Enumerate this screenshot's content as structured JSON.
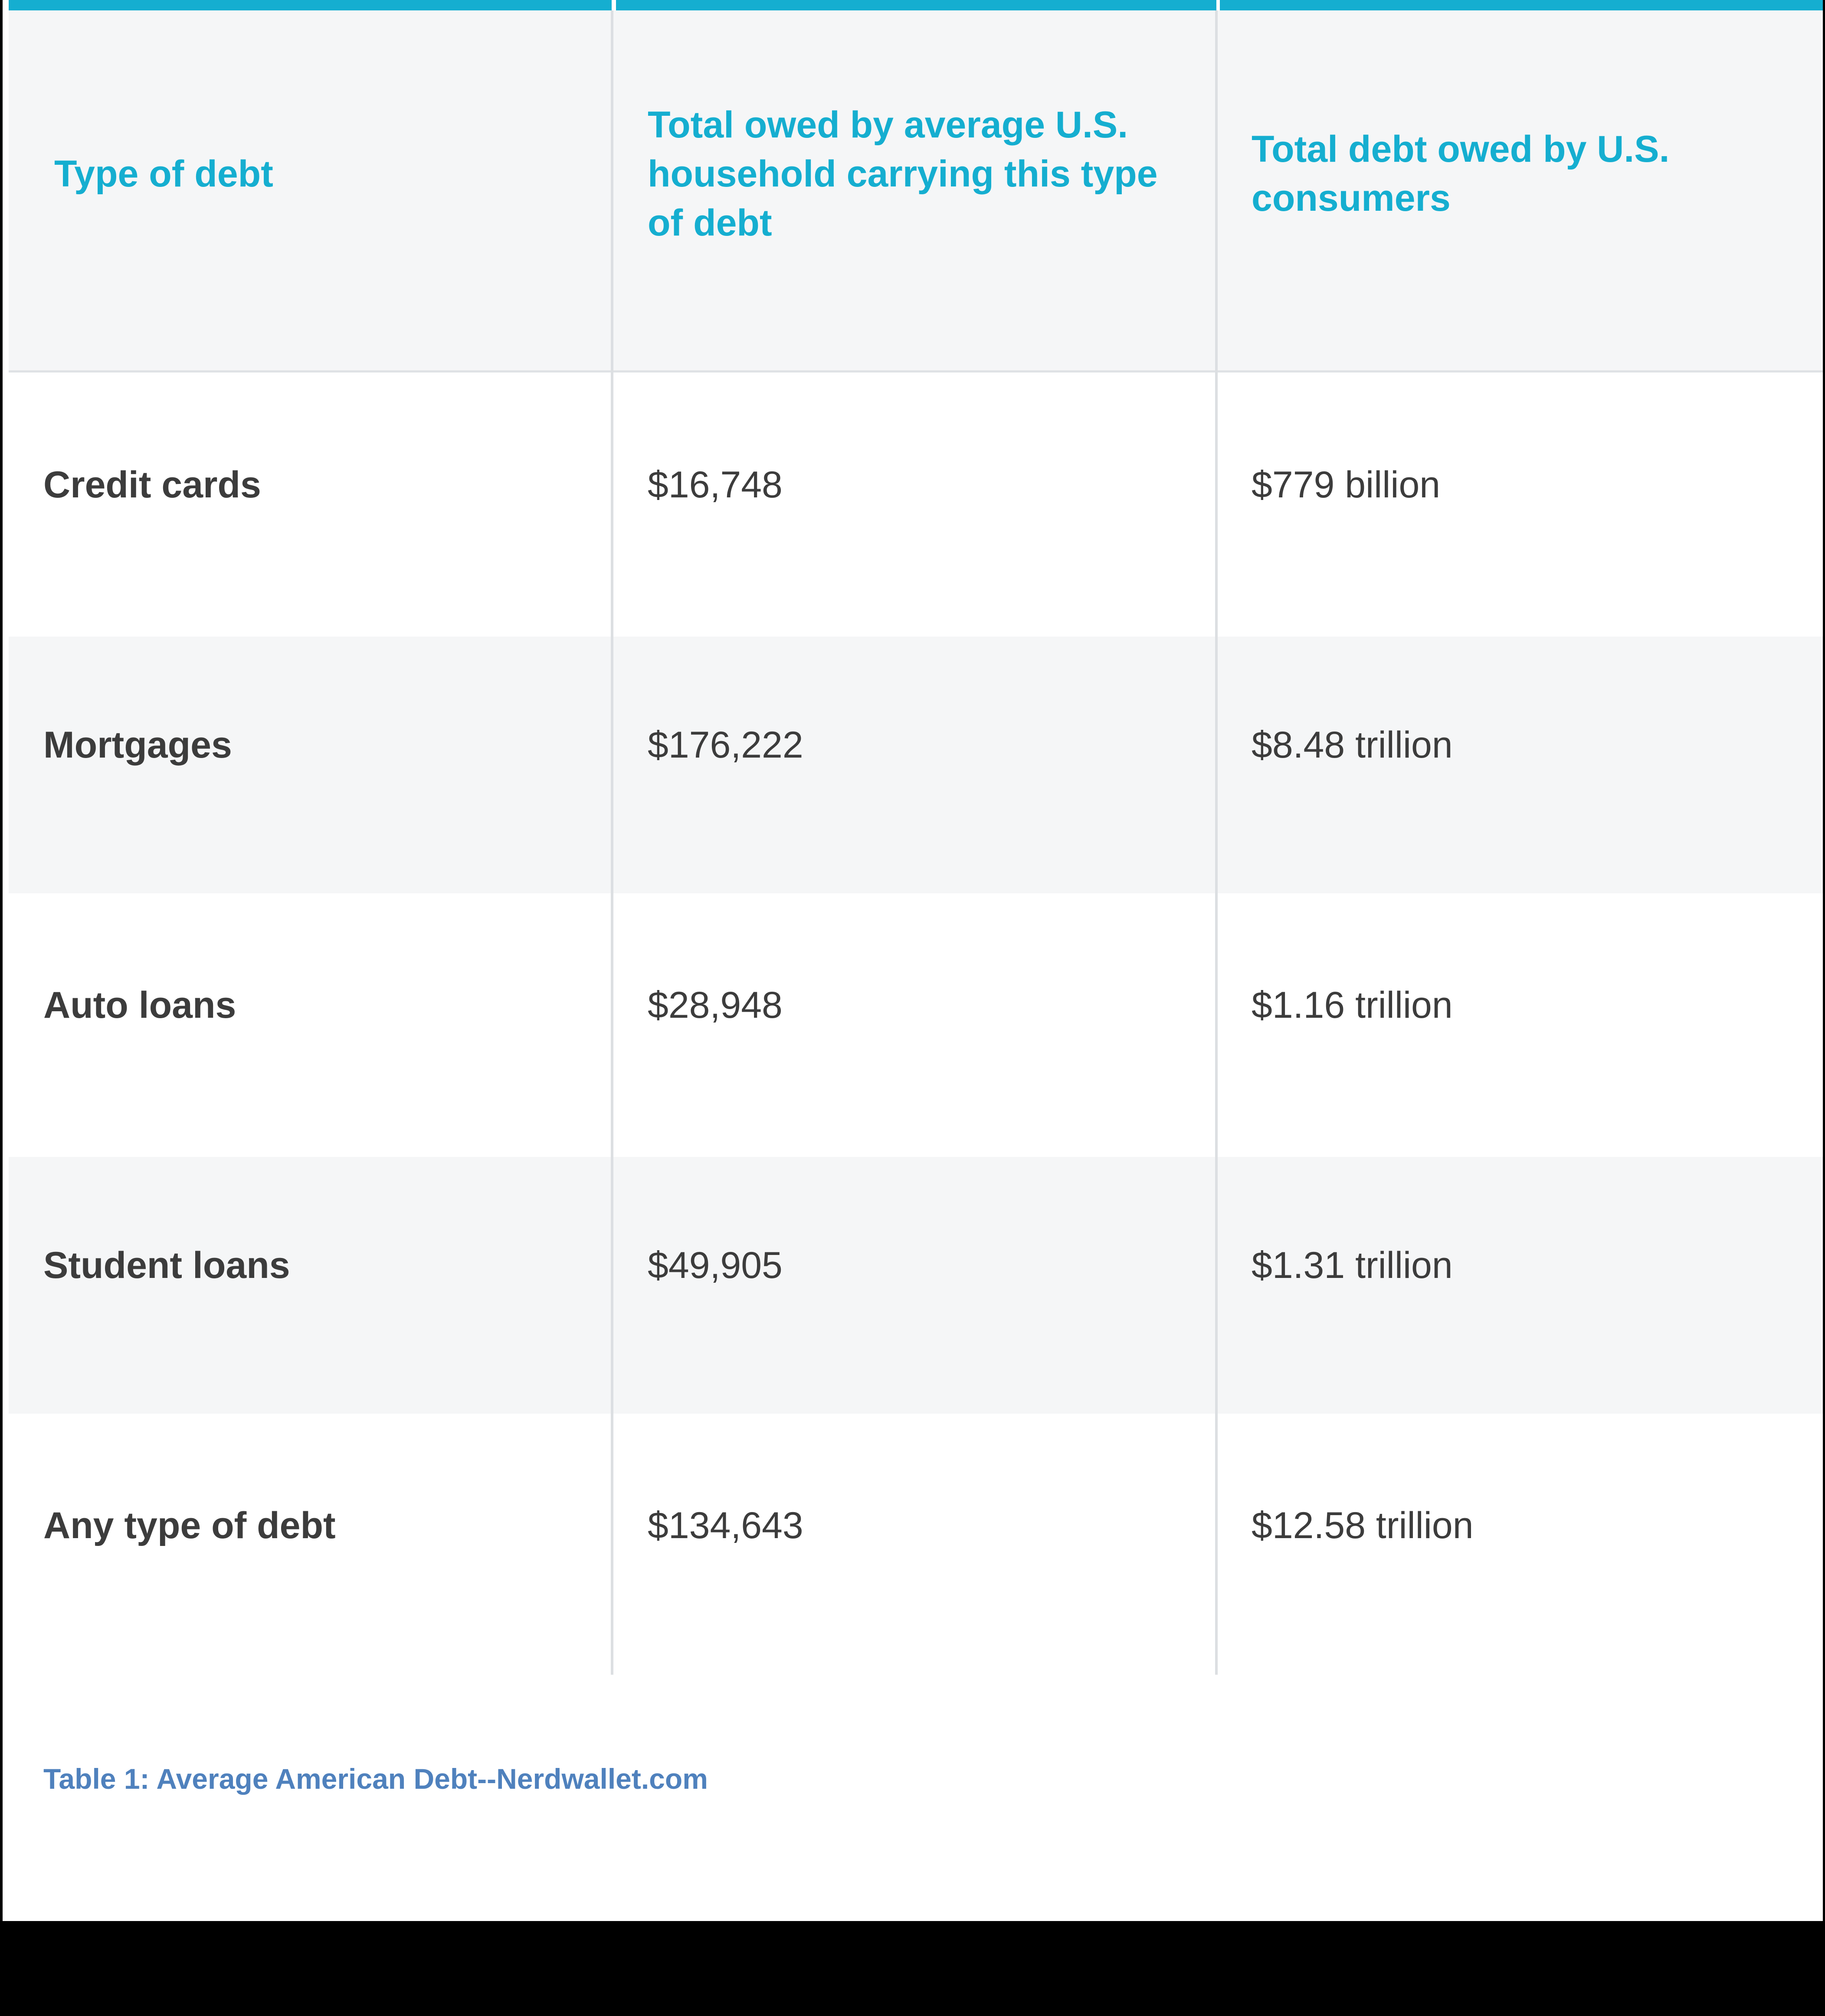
{
  "table": {
    "headers": [
      "Type of debt",
      "Total owed by average U.S. household carrying this type of debt",
      "Total debt owed by U.S. consumers"
    ],
    "rows": [
      {
        "type": "Credit cards",
        "household": "$16,748",
        "total": "$779 billion"
      },
      {
        "type": "Mortgages",
        "household": "$176,222",
        "total": "$8.48 trillion"
      },
      {
        "type": "Auto loans",
        "household": "$28,948",
        "total": "$1.16 trillion"
      },
      {
        "type": "Student loans",
        "household": "$49,905",
        "total": "$1.31 trillion"
      },
      {
        "type": "Any type of debt",
        "household": "$134,643",
        "total": "$12.58 trillion"
      }
    ]
  },
  "caption": "Table 1: Average American Debt--Nerdwallet.com",
  "colors": {
    "header_text": "#15aed0",
    "body_text": "#3c3c3c",
    "caption_text": "#4f81bd",
    "band": "#f5f6f7"
  }
}
